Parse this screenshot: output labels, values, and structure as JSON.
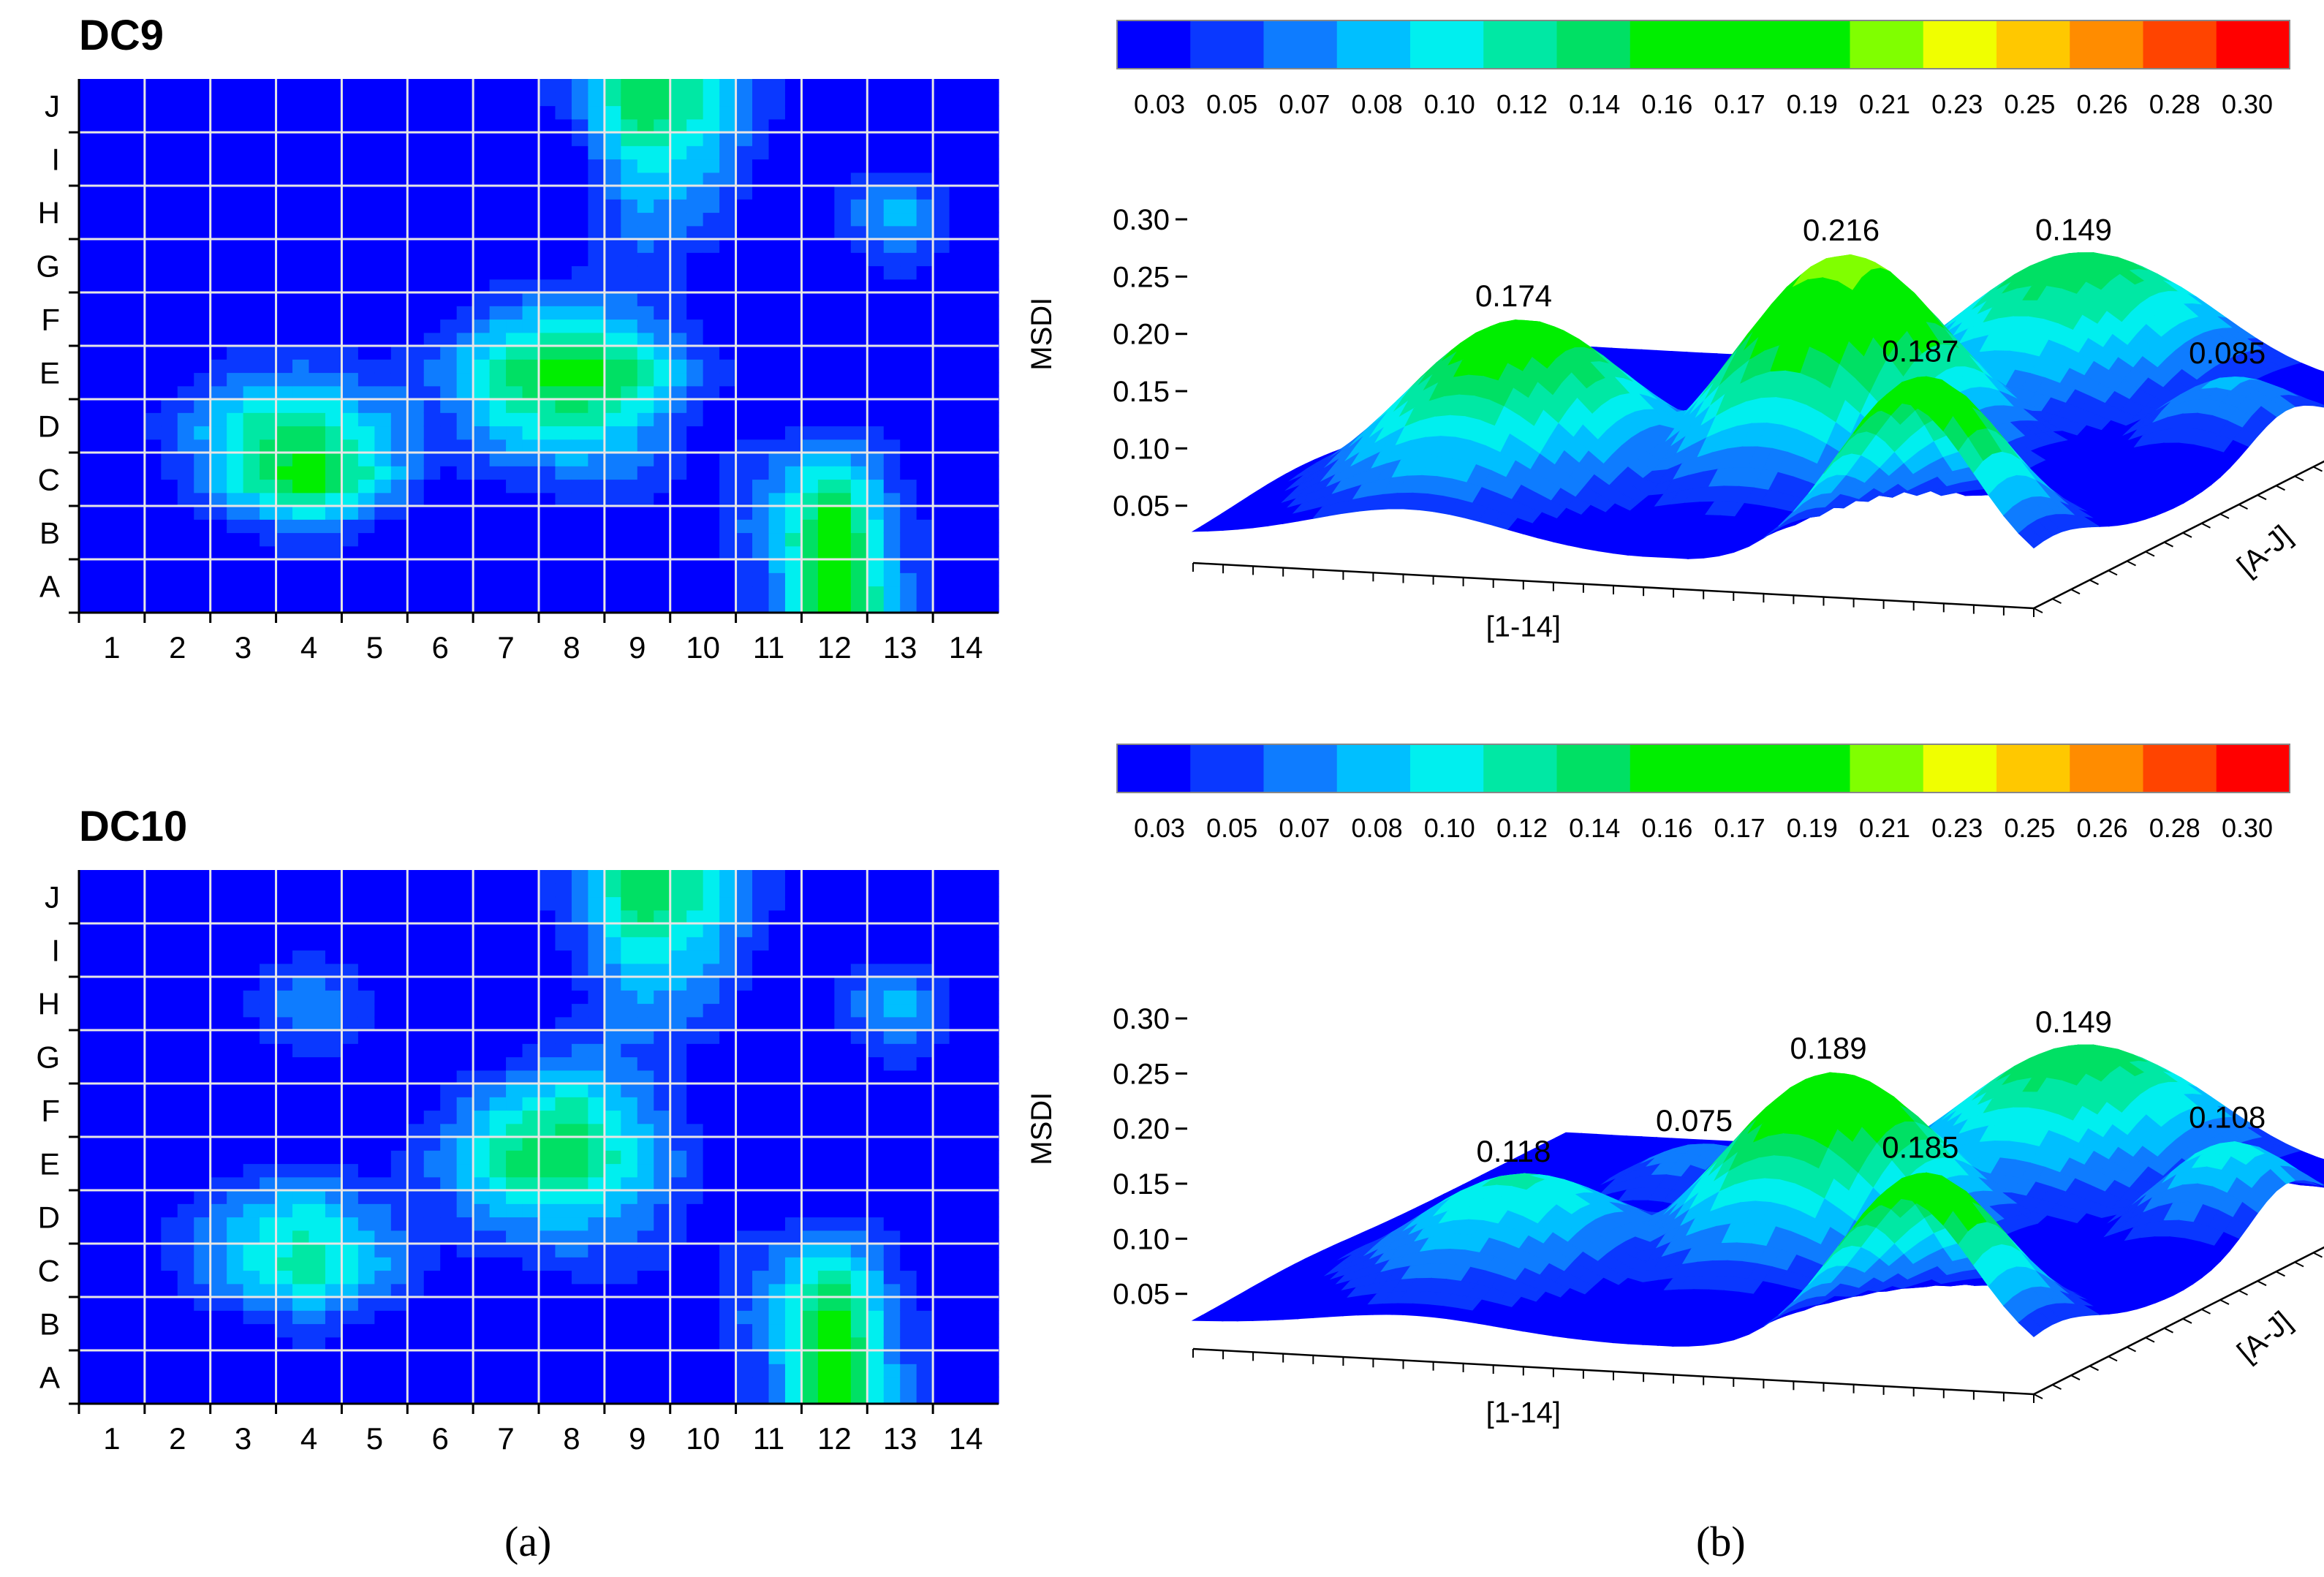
{
  "captions": {
    "a": "(a)",
    "b": "(b)"
  },
  "colors": {
    "scale": [
      "#0000ff",
      "#0a38ff",
      "#0e7cff",
      "#00bfff",
      "#00efef",
      "#00e8a4",
      "#00e064",
      "#00ee00",
      "#00ee00",
      "#00ee00",
      "#80ff00",
      "#f0ff00",
      "#ffc800",
      "#ff8c00",
      "#ff4400",
      "#ff0000"
    ],
    "grid_line": "#e6e6e6",
    "surface_low": "#0000ff"
  },
  "chart_data": [
    {
      "type": "heatmap",
      "title": "DC9",
      "x": [
        "1",
        "2",
        "3",
        "4",
        "5",
        "6",
        "7",
        "8",
        "9",
        "10",
        "11",
        "12",
        "13",
        "14"
      ],
      "y": [
        "A",
        "B",
        "C",
        "D",
        "E",
        "F",
        "G",
        "H",
        "I",
        "J"
      ],
      "values": [
        [
          0.03,
          0.03,
          0.03,
          0.03,
          0.03,
          0.03,
          0.03,
          0.03,
          0.03,
          0.03,
          0.06,
          0.19,
          0.07,
          0.03
        ],
        [
          0.03,
          0.03,
          0.04,
          0.07,
          0.04,
          0.03,
          0.03,
          0.03,
          0.03,
          0.04,
          0.08,
          0.18,
          0.06,
          0.03
        ],
        [
          0.03,
          0.05,
          0.12,
          0.17,
          0.11,
          0.04,
          0.05,
          0.06,
          0.06,
          0.04,
          0.07,
          0.13,
          0.05,
          0.03
        ],
        [
          0.03,
          0.06,
          0.12,
          0.14,
          0.09,
          0.05,
          0.1,
          0.12,
          0.09,
          0.04,
          0.04,
          0.05,
          0.04,
          0.03
        ],
        [
          0.03,
          0.04,
          0.06,
          0.07,
          0.05,
          0.07,
          0.14,
          0.17,
          0.14,
          0.06,
          0.03,
          0.03,
          0.03,
          0.03
        ],
        [
          0.03,
          0.03,
          0.03,
          0.03,
          0.03,
          0.04,
          0.08,
          0.1,
          0.07,
          0.04,
          0.03,
          0.03,
          0.03,
          0.03
        ],
        [
          0.03,
          0.03,
          0.03,
          0.03,
          0.03,
          0.03,
          0.03,
          0.04,
          0.06,
          0.04,
          0.03,
          0.03,
          0.06,
          0.03
        ],
        [
          0.03,
          0.03,
          0.03,
          0.03,
          0.03,
          0.03,
          0.03,
          0.03,
          0.08,
          0.07,
          0.03,
          0.05,
          0.1,
          0.04
        ],
        [
          0.03,
          0.03,
          0.03,
          0.03,
          0.03,
          0.03,
          0.03,
          0.03,
          0.11,
          0.09,
          0.04,
          0.03,
          0.04,
          0.03
        ],
        [
          0.03,
          0.03,
          0.03,
          0.03,
          0.03,
          0.03,
          0.03,
          0.06,
          0.15,
          0.12,
          0.05,
          0.04,
          0.03,
          0.03
        ]
      ],
      "color_scale": {
        "ticks": [
          "0.03",
          "0.05",
          "0.07",
          "0.08",
          "0.10",
          "0.12",
          "0.14",
          "0.16",
          "0.17",
          "0.19",
          "0.21",
          "0.23",
          "0.25",
          "0.26",
          "0.28",
          "0.30"
        ],
        "range": [
          0.03,
          0.3
        ]
      }
    },
    {
      "type": "heatmap",
      "title": "DC10",
      "x": [
        "1",
        "2",
        "3",
        "4",
        "5",
        "6",
        "7",
        "8",
        "9",
        "10",
        "11",
        "12",
        "13",
        "14"
      ],
      "y": [
        "A",
        "B",
        "C",
        "D",
        "E",
        "F",
        "G",
        "H",
        "I",
        "J"
      ],
      "values": [
        [
          0.03,
          0.03,
          0.03,
          0.03,
          0.03,
          0.03,
          0.03,
          0.03,
          0.03,
          0.03,
          0.06,
          0.18,
          0.07,
          0.03
        ],
        [
          0.03,
          0.03,
          0.04,
          0.06,
          0.04,
          0.03,
          0.03,
          0.03,
          0.03,
          0.04,
          0.08,
          0.17,
          0.06,
          0.03
        ],
        [
          0.03,
          0.05,
          0.1,
          0.13,
          0.09,
          0.04,
          0.04,
          0.05,
          0.05,
          0.04,
          0.07,
          0.13,
          0.05,
          0.03
        ],
        [
          0.03,
          0.05,
          0.09,
          0.11,
          0.07,
          0.05,
          0.08,
          0.09,
          0.07,
          0.04,
          0.04,
          0.05,
          0.04,
          0.03
        ],
        [
          0.03,
          0.03,
          0.04,
          0.05,
          0.04,
          0.07,
          0.14,
          0.15,
          0.1,
          0.05,
          0.03,
          0.03,
          0.03,
          0.03
        ],
        [
          0.03,
          0.03,
          0.03,
          0.03,
          0.03,
          0.05,
          0.1,
          0.13,
          0.08,
          0.04,
          0.03,
          0.03,
          0.03,
          0.03
        ],
        [
          0.03,
          0.03,
          0.03,
          0.05,
          0.04,
          0.03,
          0.04,
          0.07,
          0.06,
          0.04,
          0.03,
          0.03,
          0.06,
          0.03
        ],
        [
          0.03,
          0.03,
          0.05,
          0.09,
          0.05,
          0.03,
          0.03,
          0.04,
          0.08,
          0.07,
          0.03,
          0.05,
          0.1,
          0.04
        ],
        [
          0.03,
          0.03,
          0.03,
          0.05,
          0.03,
          0.03,
          0.03,
          0.05,
          0.11,
          0.09,
          0.04,
          0.03,
          0.04,
          0.03
        ],
        [
          0.03,
          0.03,
          0.03,
          0.03,
          0.03,
          0.03,
          0.03,
          0.06,
          0.15,
          0.12,
          0.05,
          0.04,
          0.03,
          0.03
        ]
      ],
      "color_scale": {
        "ticks": [
          "0.03",
          "0.05",
          "0.07",
          "0.08",
          "0.10",
          "0.12",
          "0.14",
          "0.16",
          "0.17",
          "0.19",
          "0.21",
          "0.23",
          "0.25",
          "0.26",
          "0.28",
          "0.30"
        ],
        "range": [
          0.03,
          0.3
        ]
      }
    },
    {
      "type": "surface3d",
      "zlabel": "MSDI",
      "xlabel": "[1-14]",
      "ylabel": "[A-J]",
      "zticks": [
        "0.30",
        "0.25",
        "0.20",
        "0.15",
        "0.10",
        "0.05"
      ],
      "zlim": [
        0,
        0.3
      ],
      "color_scale": {
        "ticks": [
          "0.03",
          "0.05",
          "0.07",
          "0.08",
          "0.10",
          "0.12",
          "0.14",
          "0.16",
          "0.17",
          "0.19",
          "0.21",
          "0.23",
          "0.25",
          "0.26",
          "0.28",
          "0.30"
        ],
        "range": [
          0.03,
          0.3
        ]
      },
      "peaks": [
        {
          "label": "0.174",
          "value": 0.174,
          "col": 3.6,
          "row": 2.8,
          "spread": 1.6
        },
        {
          "label": "0.216",
          "value": 0.216,
          "col": 8.0,
          "row": 4.5,
          "spread": 1.5
        },
        {
          "label": "0.187",
          "value": 0.187,
          "col": 11.8,
          "row": 0.5,
          "spread": 1.2
        },
        {
          "label": "0.149",
          "value": 0.149,
          "col": 9.2,
          "row": 8.8,
          "spread": 1.7
        },
        {
          "label": "0.085",
          "value": 0.085,
          "col": 13.0,
          "row": 6.8,
          "spread": 1.0
        }
      ]
    },
    {
      "type": "surface3d",
      "zlabel": "MSDI",
      "xlabel": "[1-14]",
      "ylabel": "[A-J]",
      "zticks": [
        "0.30",
        "0.25",
        "0.20",
        "0.15",
        "0.10",
        "0.05"
      ],
      "zlim": [
        0,
        0.3
      ],
      "color_scale": {
        "ticks": [
          "0.03",
          "0.05",
          "0.07",
          "0.08",
          "0.10",
          "0.12",
          "0.14",
          "0.16",
          "0.17",
          "0.19",
          "0.21",
          "0.23",
          "0.25",
          "0.26",
          "0.28",
          "0.30"
        ],
        "range": [
          0.03,
          0.3
        ]
      },
      "peaks": [
        {
          "label": "0.118",
          "value": 0.118,
          "col": 3.6,
          "row": 2.8,
          "spread": 1.5
        },
        {
          "label": "0.075",
          "value": 0.075,
          "col": 4.0,
          "row": 7.0,
          "spread": 1.0
        },
        {
          "label": "0.189",
          "value": 0.189,
          "col": 7.6,
          "row": 4.8,
          "spread": 1.5
        },
        {
          "label": "0.185",
          "value": 0.185,
          "col": 11.8,
          "row": 0.5,
          "spread": 1.2
        },
        {
          "label": "0.149",
          "value": 0.149,
          "col": 9.2,
          "row": 8.8,
          "spread": 1.7
        },
        {
          "label": "0.108",
          "value": 0.108,
          "col": 13.0,
          "row": 6.8,
          "spread": 1.0
        }
      ]
    }
  ]
}
